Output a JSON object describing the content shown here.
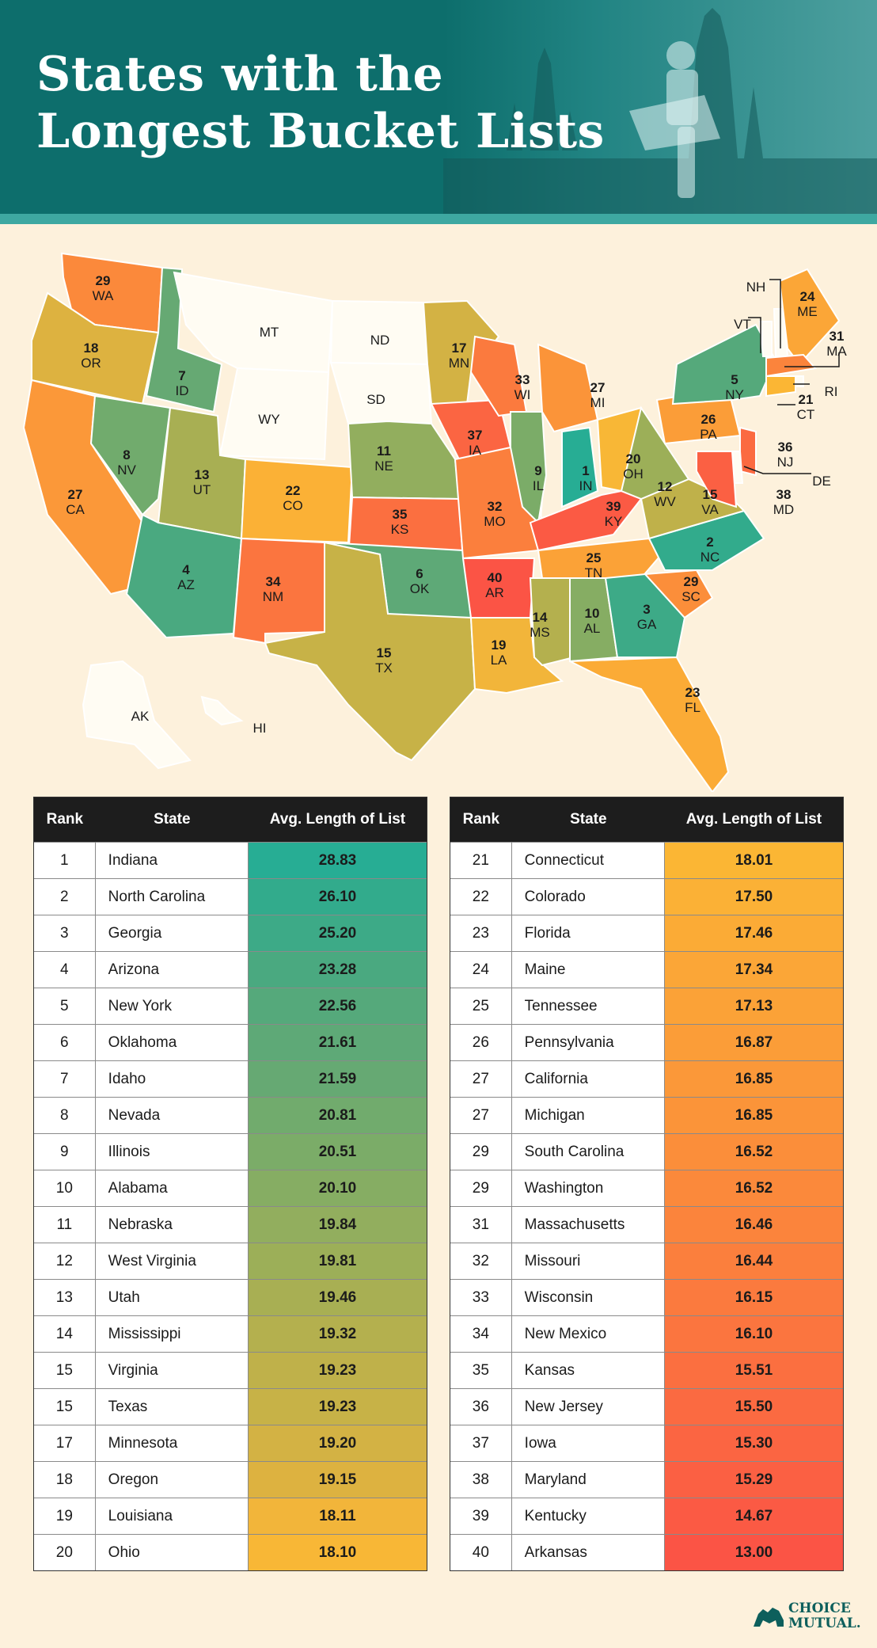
{
  "title_line1": "States with the",
  "title_line2": "Longest Bucket Lists",
  "logo_line1": "CHOICE",
  "logo_line2": "MUTUAL.",
  "chart_data": {
    "type": "table",
    "columns": [
      "Rank",
      "State",
      "Avg. Length of List"
    ],
    "rows": [
      {
        "rank": "1",
        "state": "Indiana",
        "abbr": "IN",
        "value": "28.83",
        "color": "#27ad94"
      },
      {
        "rank": "2",
        "state": "North Carolina",
        "abbr": "NC",
        "value": "26.10",
        "color": "#32ab8c"
      },
      {
        "rank": "3",
        "state": "Georgia",
        "abbr": "GA",
        "value": "25.20",
        "color": "#3daa87"
      },
      {
        "rank": "4",
        "state": "Arizona",
        "abbr": "AZ",
        "value": "23.28",
        "color": "#4aa980"
      },
      {
        "rank": "5",
        "state": "New York",
        "abbr": "NY",
        "value": "22.56",
        "color": "#55a97b"
      },
      {
        "rank": "6",
        "state": "Oklahoma",
        "abbr": "OK",
        "value": "21.61",
        "color": "#5ea977"
      },
      {
        "rank": "7",
        "state": "Idaho",
        "abbr": "ID",
        "value": "21.59",
        "color": "#66a973"
      },
      {
        "rank": "8",
        "state": "Nevada",
        "abbr": "NV",
        "value": "20.81",
        "color": "#71ab6d"
      },
      {
        "rank": "9",
        "state": "Illinois",
        "abbr": "IL",
        "value": "20.51",
        "color": "#7bac68"
      },
      {
        "rank": "10",
        "state": "Alabama",
        "abbr": "AL",
        "value": "20.10",
        "color": "#86ad63"
      },
      {
        "rank": "11",
        "state": "Nebraska",
        "abbr": "NE",
        "value": "19.84",
        "color": "#92ae5e"
      },
      {
        "rank": "12",
        "state": "West Virginia",
        "abbr": "WV",
        "value": "19.81",
        "color": "#9caf58"
      },
      {
        "rank": "13",
        "state": "Utah",
        "abbr": "UT",
        "value": "19.46",
        "color": "#a8af53"
      },
      {
        "rank": "14",
        "state": "Mississippi",
        "abbr": "MS",
        "value": "19.32",
        "color": "#b4b04e"
      },
      {
        "rank": "15",
        "state": "Virginia",
        "abbr": "VA",
        "value": "19.23",
        "color": "#bfb14a"
      },
      {
        "rank": "15",
        "state": "Texas",
        "abbr": "TX",
        "value": "19.23",
        "color": "#c7b247"
      },
      {
        "rank": "17",
        "state": "Minnesota",
        "abbr": "MN",
        "value": "19.20",
        "color": "#d3b244"
      },
      {
        "rank": "18",
        "state": "Oregon",
        "abbr": "OR",
        "value": "19.15",
        "color": "#ddb240"
      },
      {
        "rank": "19",
        "state": "Louisiana",
        "abbr": "LA",
        "value": "18.11",
        "color": "#f2b53a"
      },
      {
        "rank": "20",
        "state": "Ohio",
        "abbr": "OH",
        "value": "18.10",
        "color": "#f8b736"
      },
      {
        "rank": "21",
        "state": "Connecticut",
        "abbr": "CT",
        "value": "18.01",
        "color": "#fbb634"
      },
      {
        "rank": "22",
        "state": "Colorado",
        "abbr": "CO",
        "value": "17.50",
        "color": "#fbb136"
      },
      {
        "rank": "23",
        "state": "Florida",
        "abbr": "FL",
        "value": "17.46",
        "color": "#fbab36"
      },
      {
        "rank": "24",
        "state": "Maine",
        "abbr": "ME",
        "value": "17.34",
        "color": "#fba637"
      },
      {
        "rank": "25",
        "state": "Tennessee",
        "abbr": "TN",
        "value": "17.13",
        "color": "#fba237"
      },
      {
        "rank": "26",
        "state": "Pennsylvania",
        "abbr": "PA",
        "value": "16.87",
        "color": "#fb9d38"
      },
      {
        "rank": "27",
        "state": "California",
        "abbr": "CA",
        "value": "16.85",
        "color": "#fb9839"
      },
      {
        "rank": "27",
        "state": "Michigan",
        "abbr": "MI",
        "value": "16.85",
        "color": "#fb9439"
      },
      {
        "rank": "29",
        "state": "South Carolina",
        "abbr": "SC",
        "value": "16.52",
        "color": "#fb8e3a"
      },
      {
        "rank": "29",
        "state": "Washington",
        "abbr": "WA",
        "value": "16.52",
        "color": "#fb893b"
      },
      {
        "rank": "31",
        "state": "Massachusetts",
        "abbr": "MA",
        "value": "16.46",
        "color": "#fb843c"
      },
      {
        "rank": "32",
        "state": "Missouri",
        "abbr": "MO",
        "value": "16.44",
        "color": "#fb7f3d"
      },
      {
        "rank": "33",
        "state": "Wisconsin",
        "abbr": "WI",
        "value": "16.15",
        "color": "#fb7a3e"
      },
      {
        "rank": "34",
        "state": "New Mexico",
        "abbr": "NM",
        "value": "16.10",
        "color": "#fb753f"
      },
      {
        "rank": "35",
        "state": "Kansas",
        "abbr": "KS",
        "value": "15.51",
        "color": "#fb6f40"
      },
      {
        "rank": "36",
        "state": "New Jersey",
        "abbr": "NJ",
        "value": "15.50",
        "color": "#fb6a41"
      },
      {
        "rank": "37",
        "state": "Iowa",
        "abbr": "IA",
        "value": "15.30",
        "color": "#fb6542"
      },
      {
        "rank": "38",
        "state": "Maryland",
        "abbr": "MD",
        "value": "15.29",
        "color": "#fb6043"
      },
      {
        "rank": "39",
        "state": "Kentucky",
        "abbr": "KY",
        "value": "14.67",
        "color": "#fb5a44"
      },
      {
        "rank": "40",
        "state": "Arkansas",
        "abbr": "AR",
        "value": "13.00",
        "color": "#fb5445"
      }
    ],
    "unranked_states": [
      "MT",
      "ND",
      "SD",
      "WY",
      "NH",
      "VT",
      "RI",
      "DE",
      "AK",
      "HI"
    ]
  }
}
